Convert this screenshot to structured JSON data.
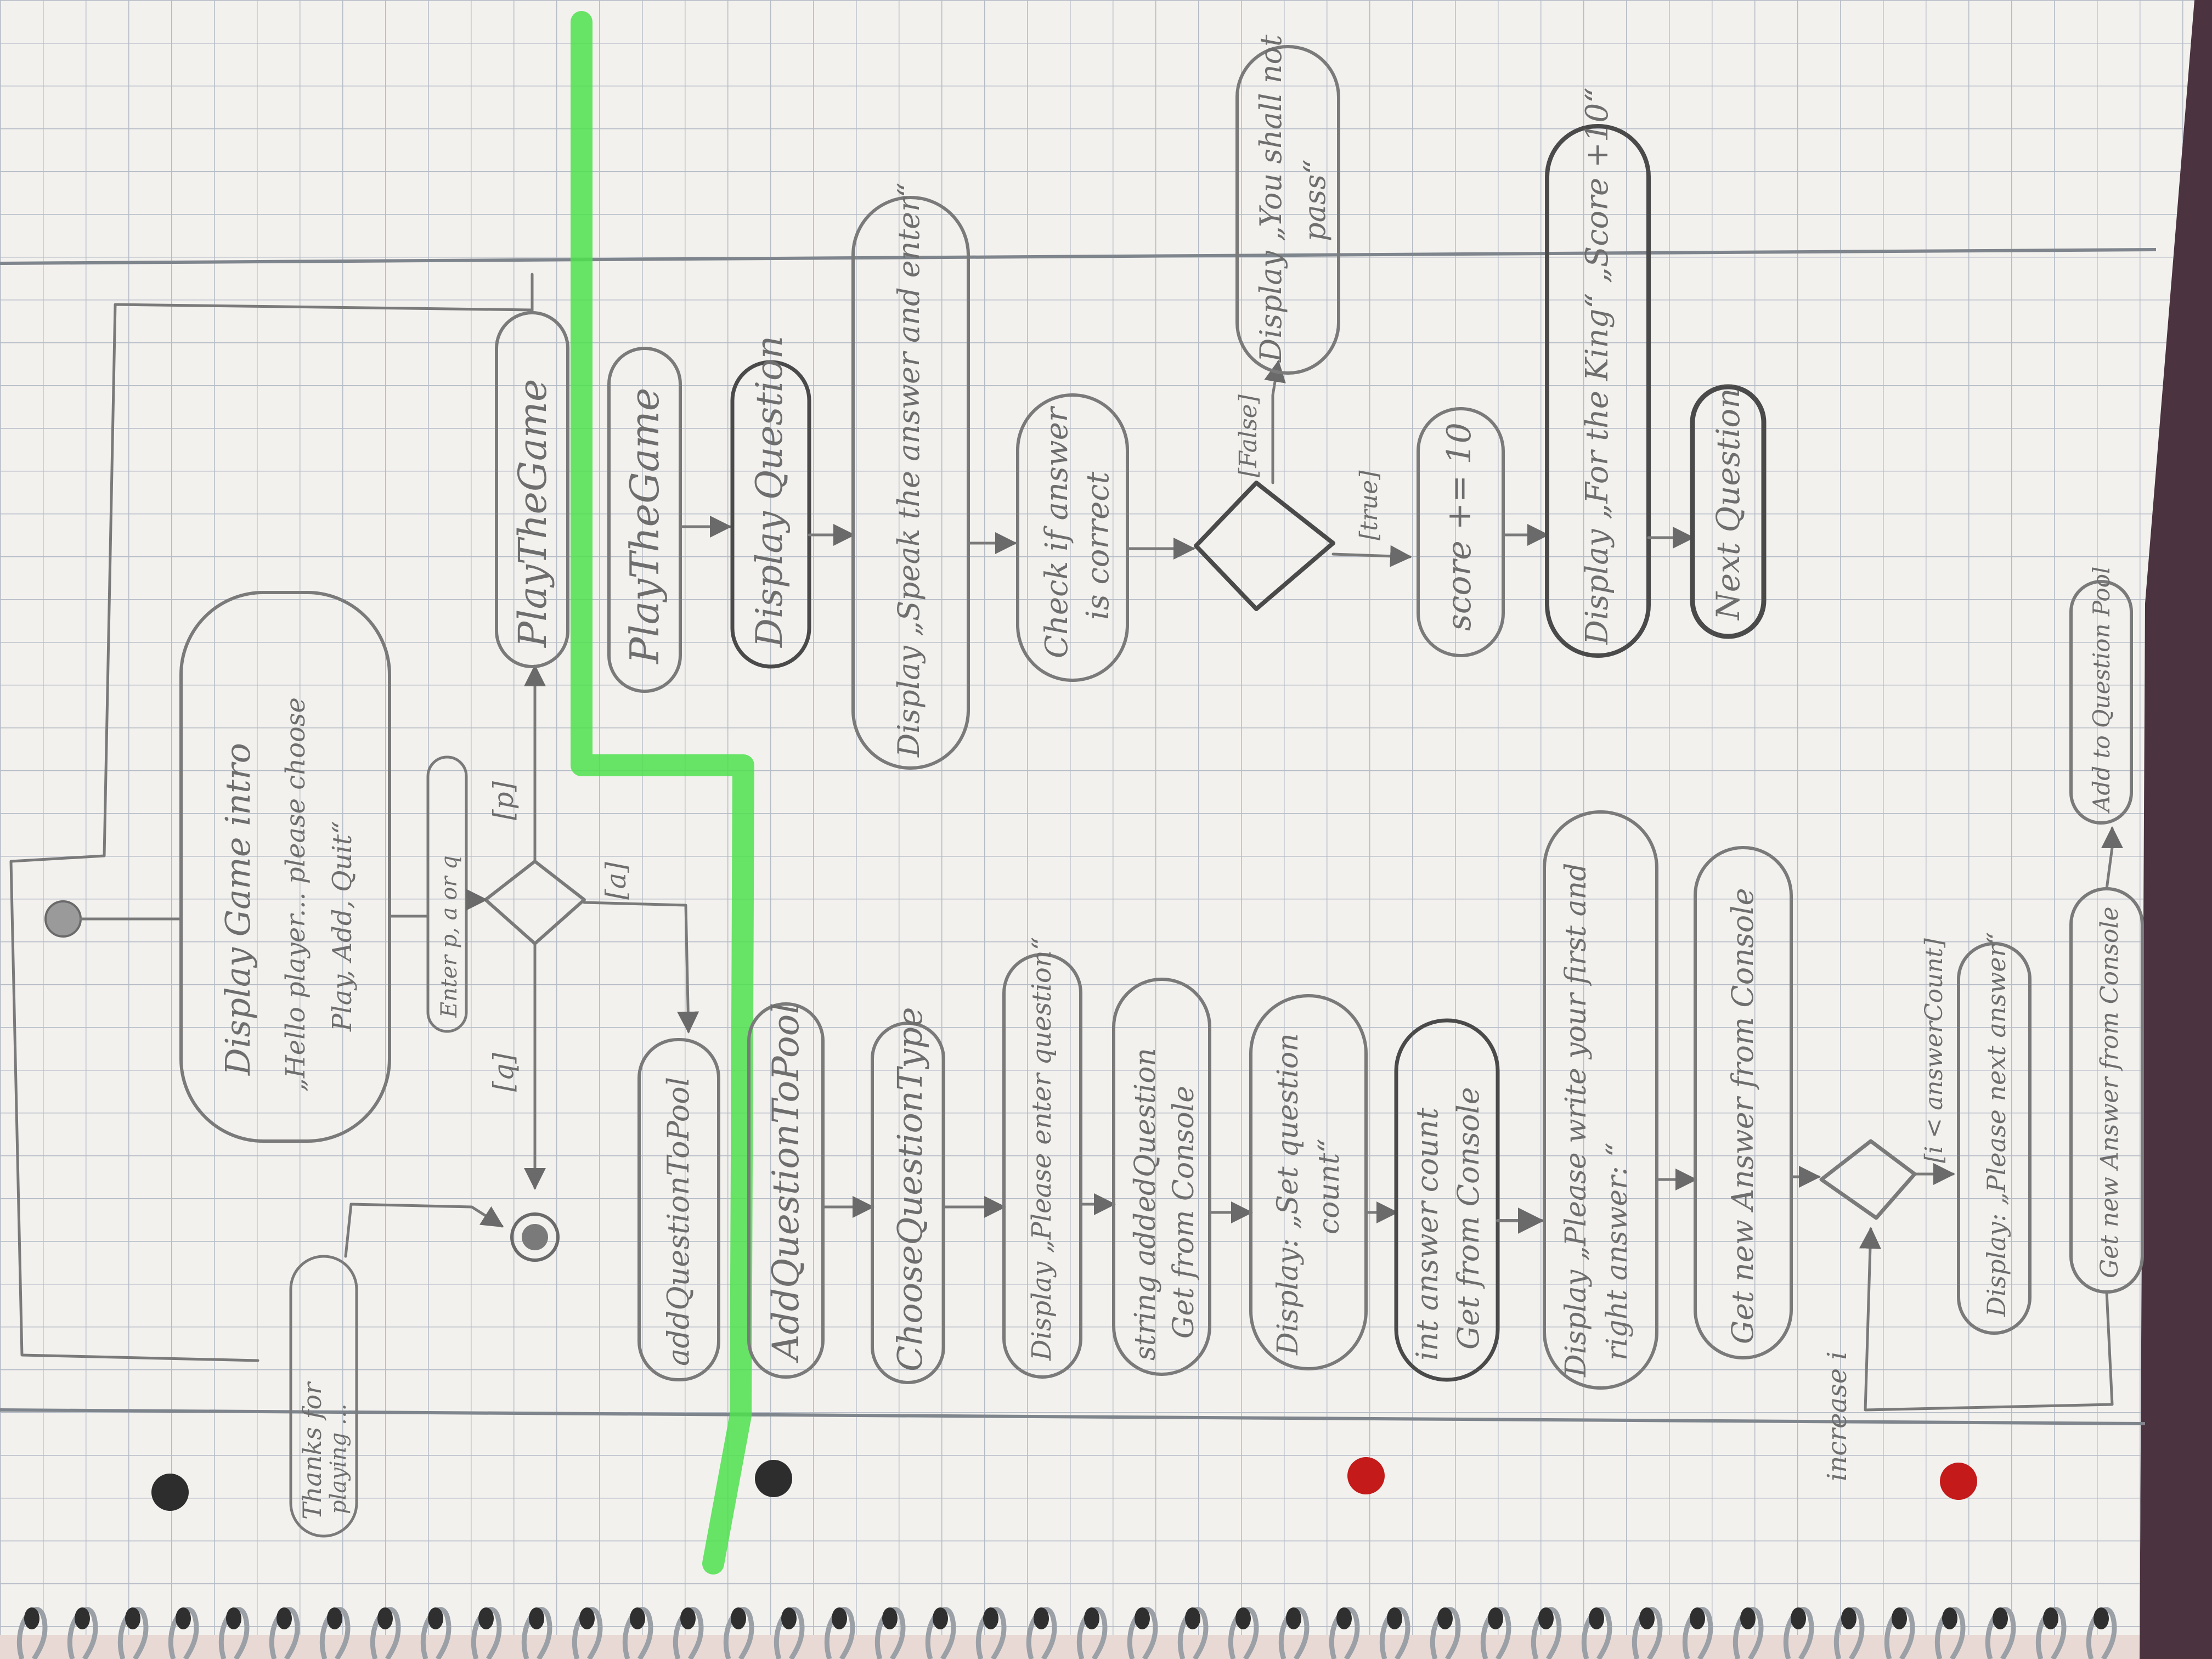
{
  "paper": {
    "grid_color": "#aab3bf",
    "rule_color": "#7f858c",
    "pencil_color": "#6e6e6e",
    "highlighter_color": "#4ee04e",
    "hole_color_red": "#c41a1a"
  },
  "main_flow": {
    "start_node": "",
    "intro": {
      "title": "Display Game intro",
      "body_line1": "„Hello player... please choose",
      "body_line2": "Play, Add, Quit“"
    },
    "enter": "Enter p, a or q",
    "guard_p": "[p]",
    "guard_q": "[q]",
    "guard_a": "[a]",
    "play_the_game_main": "PlayTheGame",
    "add_question_main": "addQuestionToPool",
    "thanks_line1": "Thanks for",
    "thanks_line2": "playing …"
  },
  "play_flow": {
    "title": "PlayTheGame",
    "display_question": "Display Question",
    "speak_answer": "Display „Speak the answer and enter“",
    "check_line1": "Check if answer",
    "check_line2": "is correct",
    "guard_false": "[False]",
    "guard_true": "[true]",
    "shall_not_pass_line1": "Display „You shall not",
    "shall_not_pass_line2": "pass“",
    "score": "score += 10",
    "for_the_king": "Display „For the King“ „Score +10“",
    "next_question": "Next Question"
  },
  "add_flow": {
    "title": "AddQuestionToPool",
    "choose_type": "ChooseQuestionType",
    "please_enter_question": "Display „Please enter question“",
    "string_add_question_line1": "string addedQuestion",
    "string_add_question_line2": "Get from Console",
    "get_question_count_line1": "Display: „Set question",
    "get_question_count_line2": "count“",
    "int_answer_count_line1": "int answer count",
    "int_answer_count_line2": "Get from Console",
    "write_first_answer_line1": "Display „Please write your first and",
    "write_first_answer_line2": "right answer: “",
    "get_new_answer": "Get new Answer from Console",
    "guard_i": "[i < answerCount]",
    "please_next_answer": "Display: „Please next answer“",
    "get_new_answer_loop": "Get new Answer from Console",
    "increase": "increase i",
    "add_to_pool": "Add to Question Pool"
  }
}
